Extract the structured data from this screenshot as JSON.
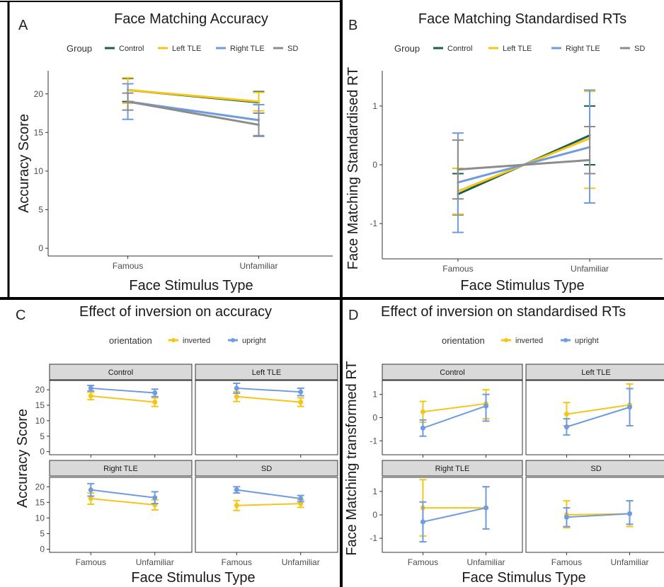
{
  "colors": {
    "Control": "#1b5e4a",
    "Left TLE": "#f5c518",
    "Right TLE": "#6f9be0",
    "SD": "#8c8c8c",
    "inverted": "#f5c518",
    "upright": "#6f9be0"
  },
  "chart_data": [
    {
      "panel": "A",
      "type": "line",
      "title": "Face Matching Accuracy",
      "xlabel": "Face Stimulus Type",
      "ylabel": "Accuracy Score",
      "categories": [
        "Famous",
        "Unfamiliar"
      ],
      "ylim": [
        -1,
        23
      ],
      "yticks": [
        0,
        5,
        10,
        15,
        20
      ],
      "legend_title": "Group",
      "legend_position": "top",
      "grid": false,
      "series": [
        {
          "name": "Control",
          "values": [
            20.5,
            18.9
          ],
          "err": [
            [
              19.0,
              22.0
            ],
            [
              17.5,
              20.3
            ]
          ]
        },
        {
          "name": "Left TLE",
          "values": [
            20.5,
            19.0
          ],
          "err": [
            [
              18.8,
              22.1
            ],
            [
              17.8,
              20.2
            ]
          ]
        },
        {
          "name": "Right TLE",
          "values": [
            19.0,
            16.6
          ],
          "err": [
            [
              16.7,
              21.3
            ],
            [
              14.6,
              18.6
            ]
          ]
        },
        {
          "name": "SD",
          "values": [
            19.0,
            16.0
          ],
          "err": [
            [
              17.9,
              20.1
            ],
            [
              14.5,
              17.5
            ]
          ]
        }
      ]
    },
    {
      "panel": "B",
      "type": "line",
      "title": "Face Matching Standardised RTs",
      "xlabel": "Face Stimulus Type",
      "ylabel": "Face Matching Standardised RT",
      "categories": [
        "Famous",
        "Unfamiliar"
      ],
      "ylim": [
        -1.6,
        1.6
      ],
      "yticks": [
        -1,
        0,
        1
      ],
      "legend_title": "Group",
      "legend_position": "top",
      "grid": false,
      "series": [
        {
          "name": "Control",
          "values": [
            -0.5,
            0.5
          ],
          "err": [
            [
              -0.85,
              -0.15
            ],
            [
              0.0,
              1.0
            ]
          ]
        },
        {
          "name": "Left TLE",
          "values": [
            -0.45,
            0.45
          ],
          "err": [
            [
              -0.84,
              -0.06
            ],
            [
              -0.4,
              1.25
            ]
          ]
        },
        {
          "name": "Right TLE",
          "values": [
            -0.3,
            0.3
          ],
          "err": [
            [
              -1.15,
              0.54
            ],
            [
              -0.65,
              1.27
            ]
          ]
        },
        {
          "name": "SD",
          "values": [
            -0.08,
            0.08
          ],
          "err": [
            [
              -0.58,
              0.42
            ],
            [
              -0.15,
              0.65
            ]
          ]
        }
      ]
    },
    {
      "panel": "C",
      "type": "line",
      "title": "Effect of inversion on accuracy",
      "xlabel": "Face Stimulus Type",
      "ylabel": "Accuracy Score",
      "categories": [
        "Famous",
        "Unfamiliar"
      ],
      "ylim": [
        -1,
        23
      ],
      "yticks": [
        0,
        5,
        10,
        15,
        20
      ],
      "legend_title": "orientation",
      "legend_position": "top",
      "facets": [
        {
          "label": "Control",
          "series": [
            {
              "name": "inverted",
              "values": [
                18.0,
                16.0
              ],
              "err": [
                [
                  16.8,
                  19.2
                ],
                [
                  14.6,
                  17.4
                ]
              ]
            },
            {
              "name": "upright",
              "values": [
                20.5,
                19.0
              ],
              "err": [
                [
                  19.6,
                  21.4
                ],
                [
                  17.8,
                  20.2
                ]
              ]
            }
          ]
        },
        {
          "label": "Left TLE",
          "series": [
            {
              "name": "inverted",
              "values": [
                17.8,
                16.0
              ],
              "err": [
                [
                  16.2,
                  19.4
                ],
                [
                  14.6,
                  17.4
                ]
              ]
            },
            {
              "name": "upright",
              "values": [
                20.5,
                19.3
              ],
              "err": [
                [
                  18.9,
                  22.1
                ],
                [
                  18.1,
                  20.5
                ]
              ]
            }
          ]
        },
        {
          "label": "Right TLE",
          "series": [
            {
              "name": "inverted",
              "values": [
                16.2,
                14.2
              ],
              "err": [
                [
                  14.4,
                  18.0
                ],
                [
                  12.6,
                  15.8
                ]
              ]
            },
            {
              "name": "upright",
              "values": [
                19.0,
                16.5
              ],
              "err": [
                [
                  17.0,
                  21.0
                ],
                [
                  14.6,
                  18.4
                ]
              ]
            }
          ]
        },
        {
          "label": "SD",
          "series": [
            {
              "name": "inverted",
              "values": [
                14.0,
                14.6
              ],
              "err": [
                [
                  12.4,
                  15.6
                ],
                [
                  13.4,
                  15.8
                ]
              ]
            },
            {
              "name": "upright",
              "values": [
                19.0,
                16.2
              ],
              "err": [
                [
                  18.0,
                  20.0
                ],
                [
                  15.2,
                  17.2
                ]
              ]
            }
          ]
        }
      ]
    },
    {
      "panel": "D",
      "type": "line",
      "title": "Effect of inversion on standardised RTs",
      "xlabel": "Face Stimulus Type",
      "ylabel": "Face Matching transformed RT",
      "categories": [
        "Famous",
        "Unfamiliar"
      ],
      "ylim": [
        -1.6,
        1.6
      ],
      "yticks": [
        -1,
        0,
        1
      ],
      "legend_title": "orientation",
      "legend_position": "top",
      "facets": [
        {
          "label": "Control",
          "series": [
            {
              "name": "inverted",
              "values": [
                0.25,
                0.6
              ],
              "err": [
                [
                  -0.2,
                  0.7
                ],
                [
                  -0.05,
                  1.2
                ]
              ]
            },
            {
              "name": "upright",
              "values": [
                -0.45,
                0.5
              ],
              "err": [
                [
                  -0.8,
                  -0.1
                ],
                [
                  -0.15,
                  1.0
                ]
              ]
            }
          ]
        },
        {
          "label": "Left TLE",
          "series": [
            {
              "name": "inverted",
              "values": [
                0.15,
                0.55
              ],
              "err": [
                [
                  -0.35,
                  0.65
                ],
                [
                  -0.35,
                  1.45
                ]
              ]
            },
            {
              "name": "upright",
              "values": [
                -0.4,
                0.45
              ],
              "err": [
                [
                  -0.75,
                  -0.05
                ],
                [
                  -0.35,
                  1.25
                ]
              ]
            }
          ]
        },
        {
          "label": "Right TLE",
          "series": [
            {
              "name": "inverted",
              "values": [
                0.3,
                0.3
              ],
              "err": [
                [
                  -0.9,
                  1.5
                ],
                [
                  -0.6,
                  1.2
                ]
              ]
            },
            {
              "name": "upright",
              "values": [
                -0.3,
                0.3
              ],
              "err": [
                [
                  -1.15,
                  0.55
                ],
                [
                  -0.6,
                  1.2
                ]
              ]
            }
          ]
        },
        {
          "label": "SD",
          "series": [
            {
              "name": "inverted",
              "values": [
                0.0,
                0.05
              ],
              "err": [
                [
                  -0.55,
                  0.6
                ],
                [
                  -0.5,
                  0.6
                ]
              ]
            },
            {
              "name": "upright",
              "values": [
                -0.1,
                0.05
              ],
              "err": [
                [
                  -0.5,
                  0.3
                ],
                [
                  -0.4,
                  0.6
                ]
              ]
            }
          ]
        }
      ]
    }
  ]
}
